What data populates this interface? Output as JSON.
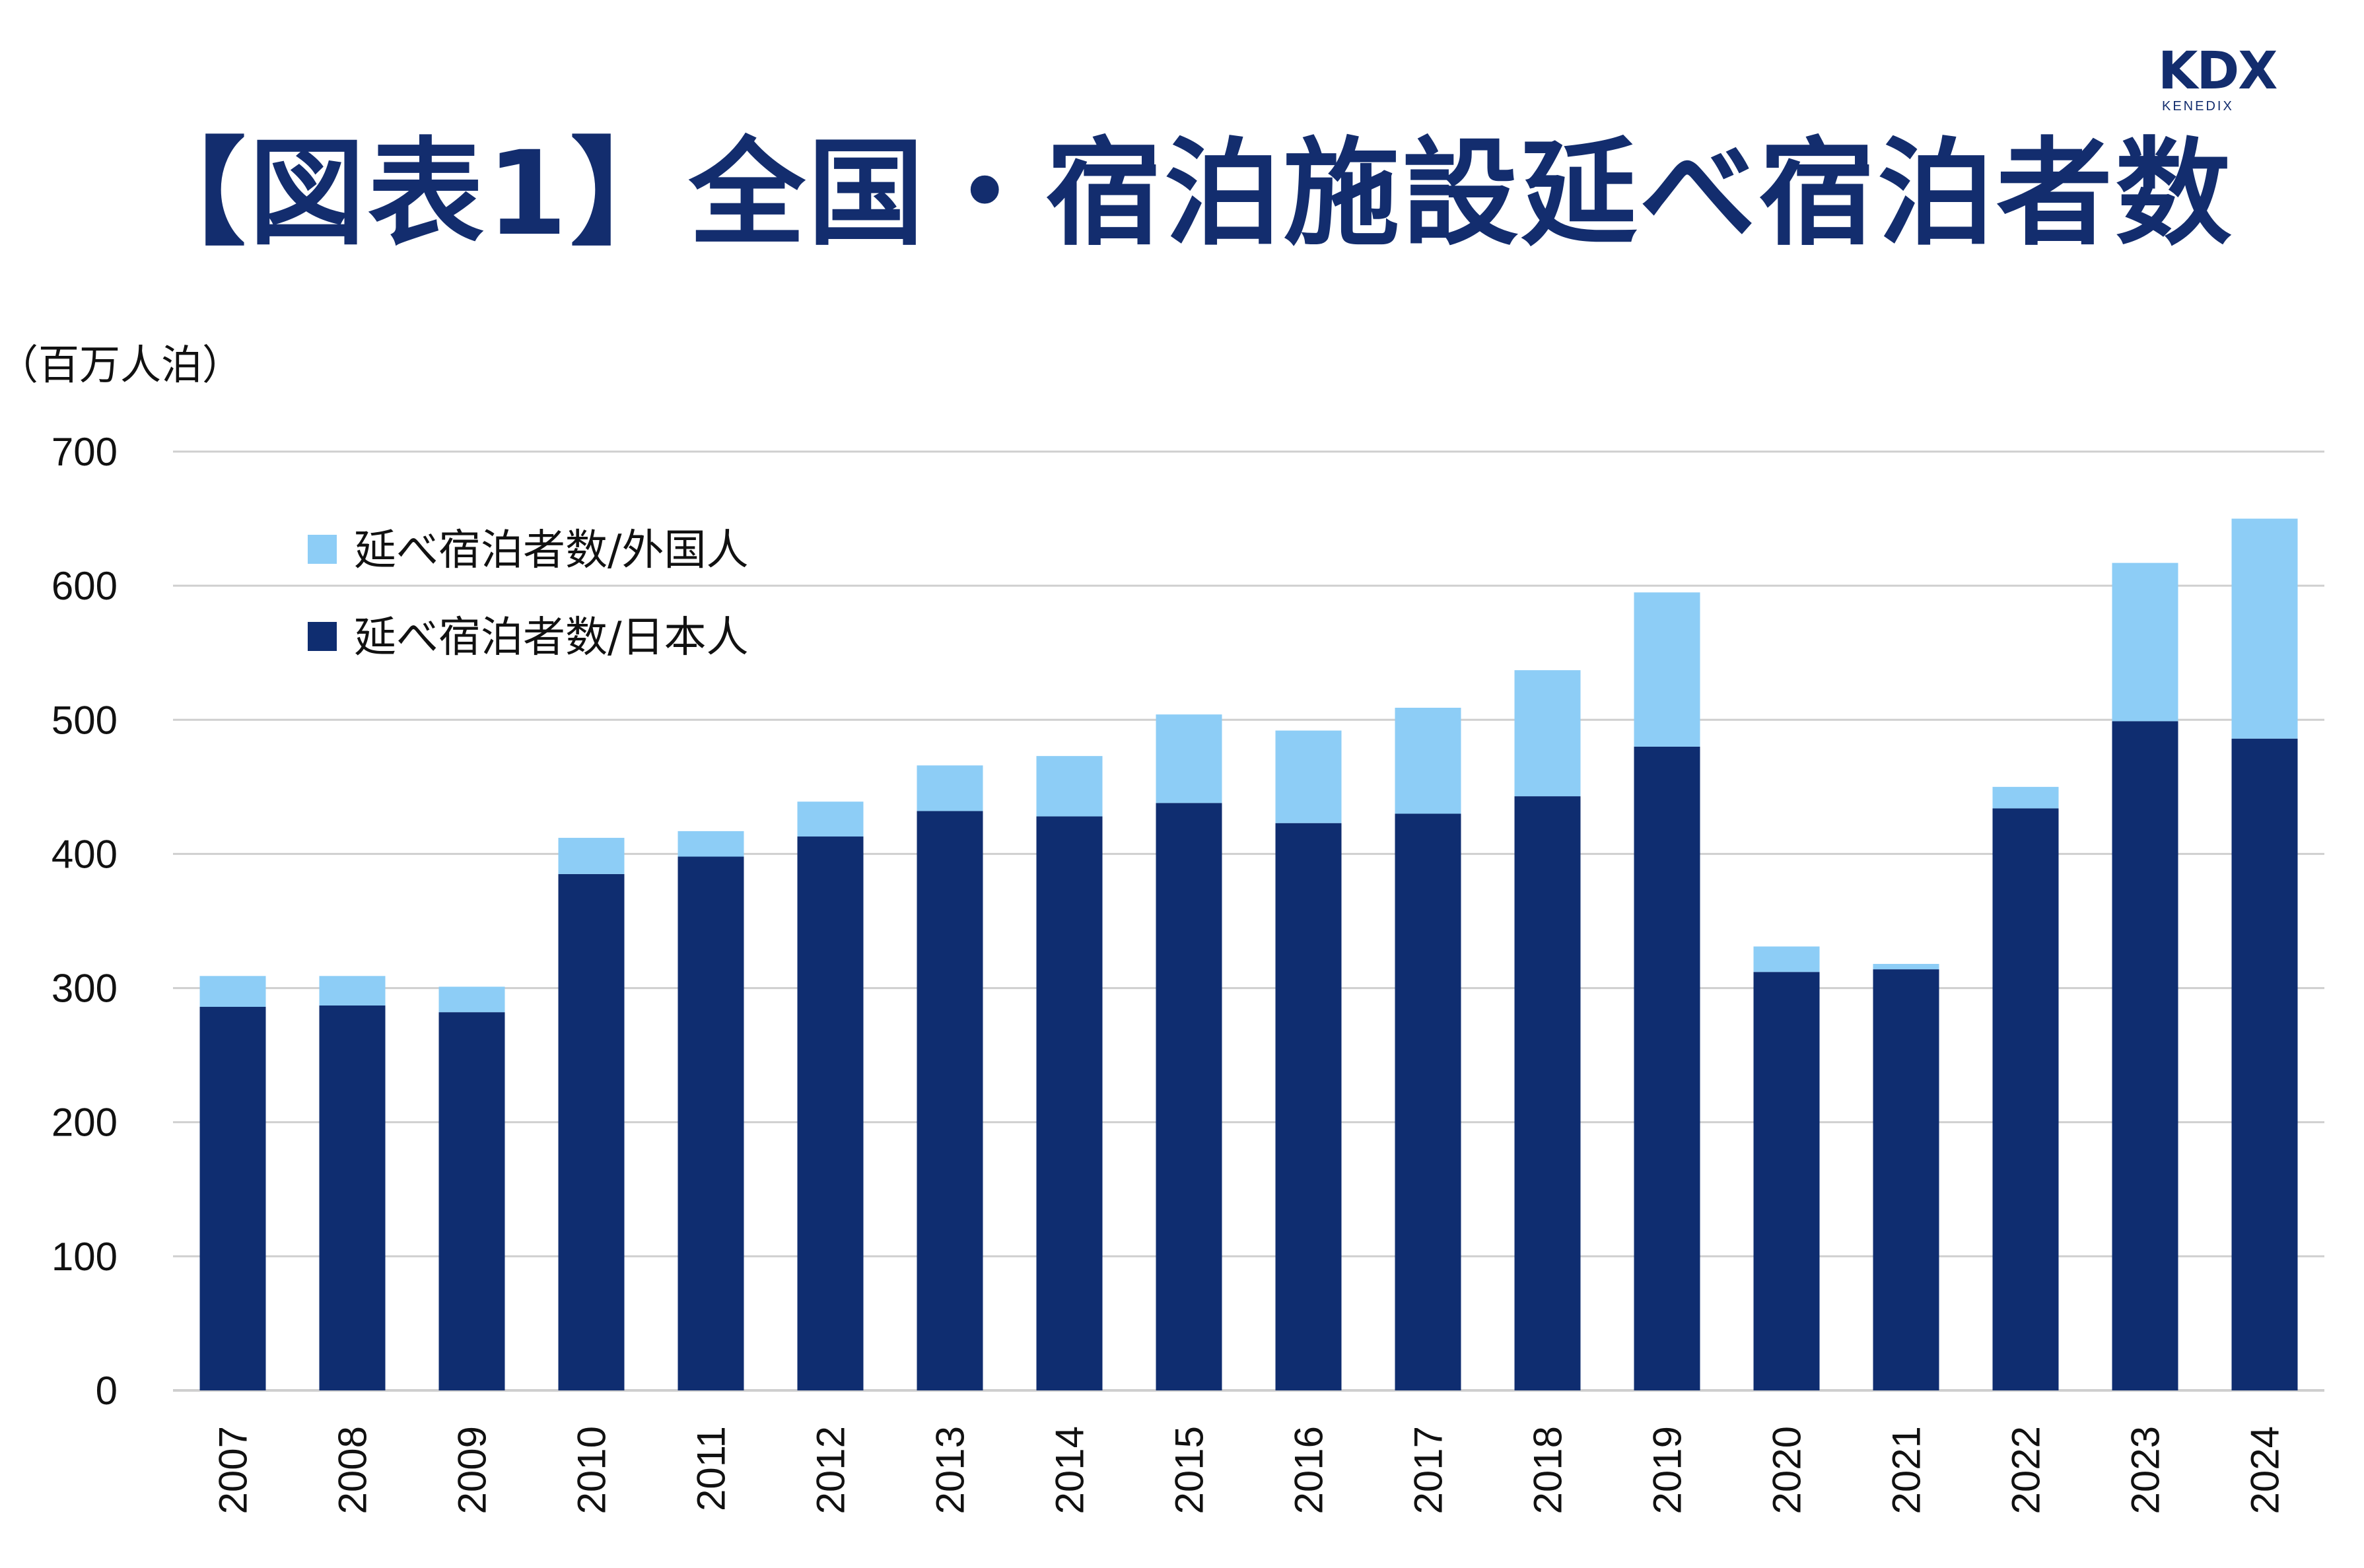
{
  "page": {
    "title": "【図表1】全国・宿泊施設延べ宿泊者数",
    "logo": {
      "main": "KDX",
      "sub": "KENEDIX"
    }
  },
  "colors": {
    "japanese": "#0f2d70",
    "foreign": "#8dcdf6",
    "grid": "#cfcfcf",
    "title": "#132d6e"
  },
  "chart_data": {
    "type": "bar",
    "stacked": true,
    "ylabel": "（百万人泊）",
    "xlabel": "",
    "ylim": [
      0,
      700
    ],
    "yticks": [
      0,
      100,
      200,
      300,
      400,
      500,
      600,
      700
    ],
    "grid": true,
    "legend_position": "top-left",
    "categories": [
      "2007",
      "2008",
      "2009",
      "2010",
      "2011",
      "2012",
      "2013",
      "2014",
      "2015",
      "2016",
      "2017",
      "2018",
      "2019",
      "2020",
      "2021",
      "2022",
      "2023",
      "2024"
    ],
    "series": [
      {
        "name": "延べ宿泊者数/日本人",
        "color": "#0f2d70",
        "values": [
          286,
          287,
          282,
          385,
          398,
          413,
          432,
          428,
          438,
          423,
          430,
          443,
          480,
          312,
          314,
          434,
          499,
          486
        ]
      },
      {
        "name": "延べ宿泊者数/外国人",
        "color": "#8dcdf6",
        "values": [
          23,
          22,
          19,
          27,
          19,
          26,
          34,
          45,
          66,
          69,
          79,
          94,
          115,
          19,
          4,
          16,
          118,
          164
        ]
      }
    ],
    "legend": [
      {
        "name": "延べ宿泊者数/外国人",
        "color": "#8dcdf6"
      },
      {
        "name": "延べ宿泊者数/日本人",
        "color": "#0f2d70"
      }
    ]
  }
}
